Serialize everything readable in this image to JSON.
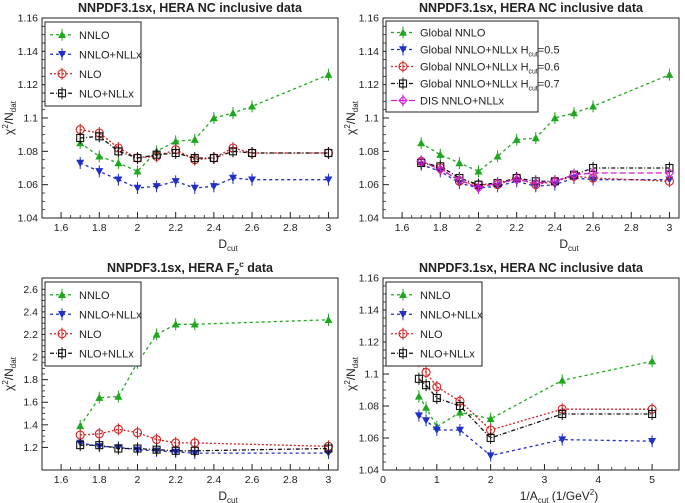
{
  "chart_data": [
    {
      "type": "line",
      "title": "NNPDF3.1sx, HERA NC inclusive data",
      "xlabel": "D_cut",
      "ylabel": "χ²/N_dat",
      "xlim": [
        1.5,
        3.05
      ],
      "ylim": [
        1.04,
        1.16
      ],
      "xticks": [
        1.6,
        1.8,
        2,
        2.2,
        2.4,
        2.6,
        2.8,
        3
      ],
      "xtick_labels": [
        "1.6",
        "1.8",
        "2",
        "2.2",
        "2.4",
        "2.6",
        "2.8",
        "3"
      ],
      "yticks": [
        1.04,
        1.06,
        1.08,
        1.1,
        1.12,
        1.14,
        1.16
      ],
      "ytick_labels": [
        "1.04",
        "1.06",
        "1.08",
        "1.1",
        "1.12",
        "1.14",
        "1.16"
      ],
      "x": [
        1.7,
        1.8,
        1.9,
        2.0,
        2.1,
        2.2,
        2.3,
        2.4,
        2.5,
        2.6,
        3.0
      ],
      "series": [
        {
          "name": "NNLO",
          "values": [
            1.085,
            1.077,
            1.073,
            1.068,
            1.08,
            1.086,
            1.087,
            1.1,
            1.103,
            1.107,
            1.126
          ]
        },
        {
          "name": "NNLO+NLLx",
          "values": [
            1.073,
            1.068,
            1.063,
            1.058,
            1.059,
            1.062,
            1.058,
            1.059,
            1.064,
            1.063,
            1.063
          ]
        },
        {
          "name": "NLO",
          "values": [
            1.093,
            1.091,
            1.082,
            1.076,
            1.077,
            1.081,
            1.075,
            1.076,
            1.082,
            1.079,
            1.079
          ]
        },
        {
          "name": "NLO+NLLx",
          "values": [
            1.088,
            1.089,
            1.08,
            1.076,
            1.078,
            1.079,
            1.076,
            1.076,
            1.08,
            1.079,
            1.079
          ]
        }
      ]
    },
    {
      "type": "line",
      "title": "NNPDF3.1sx, HERA NC inclusive data",
      "xlabel": "D_cut",
      "ylabel": "χ²/N_dat",
      "xlim": [
        1.5,
        3.05
      ],
      "ylim": [
        1.04,
        1.16
      ],
      "xticks": [
        1.6,
        1.8,
        2,
        2.2,
        2.4,
        2.6,
        2.8,
        3
      ],
      "xtick_labels": [
        "1.6",
        "1.8",
        "2",
        "2.2",
        "2.4",
        "2.6",
        "2.8",
        "3"
      ],
      "yticks": [
        1.04,
        1.06,
        1.08,
        1.1,
        1.12,
        1.14,
        1.16
      ],
      "ytick_labels": [
        "1.04",
        "1.06",
        "1.08",
        "1.1",
        "1.12",
        "1.14",
        "1.16"
      ],
      "x": [
        1.7,
        1.8,
        1.9,
        2.0,
        2.1,
        2.2,
        2.3,
        2.4,
        2.5,
        2.6,
        3.0
      ],
      "series": [
        {
          "name": "Global NNLO",
          "values": [
            1.085,
            1.078,
            1.073,
            1.068,
            1.077,
            1.087,
            1.088,
            1.1,
            1.103,
            1.107,
            1.126
          ]
        },
        {
          "name": "Global NNLO+NLLx H_cut=0.5",
          "values": [
            1.072,
            1.068,
            1.061,
            1.058,
            1.059,
            1.062,
            1.059,
            1.06,
            1.064,
            1.063,
            1.063
          ]
        },
        {
          "name": "Global NNLO+NLLx H_cut=0.6",
          "values": [
            1.074,
            1.07,
            1.062,
            1.06,
            1.06,
            1.064,
            1.06,
            1.062,
            1.065,
            1.064,
            1.062
          ]
        },
        {
          "name": "Global NNLO+NLLx H_cut=0.7",
          "values": [
            1.073,
            1.071,
            1.064,
            1.06,
            1.061,
            1.064,
            1.062,
            1.062,
            1.066,
            1.07,
            1.07
          ]
        },
        {
          "name": "DIS NNLO+NLLx",
          "values": [
            1.074,
            1.069,
            1.063,
            1.058,
            1.061,
            1.063,
            1.061,
            1.062,
            1.066,
            1.067,
            1.067
          ]
        }
      ]
    },
    {
      "type": "line",
      "title": "NNPDF3.1sx, HERA F₂ᶜ data",
      "title_main": "NNPDF3.1sx, HERA F",
      "title_sub": "2",
      "title_sup": "c",
      "title_end": " data",
      "xlabel": "D_cut",
      "ylabel": "χ²/N_dat",
      "xlim": [
        1.5,
        3.05
      ],
      "ylim": [
        1.0,
        2.7
      ],
      "xticks": [
        1.6,
        1.8,
        2,
        2.2,
        2.4,
        2.6,
        2.8,
        3
      ],
      "xtick_labels": [
        "1.6",
        "1.8",
        "2",
        "2.2",
        "2.4",
        "2.6",
        "2.8",
        "3"
      ],
      "yticks": [
        1.2,
        1.4,
        1.6,
        1.8,
        2,
        2.2,
        2.4,
        2.6
      ],
      "ytick_labels": [
        "1.2",
        "1.4",
        "1.6",
        "1.8",
        "2",
        "2.2",
        "2.4",
        "2.6"
      ],
      "x": [
        1.7,
        1.8,
        1.9,
        2.0,
        2.1,
        2.2,
        2.3,
        3.0
      ],
      "series": [
        {
          "name": "NNLO",
          "values": [
            1.39,
            1.64,
            1.65,
            1.95,
            2.2,
            2.29,
            2.29,
            2.33
          ]
        },
        {
          "name": "NNLO+NLLx",
          "values": [
            1.24,
            1.21,
            1.2,
            1.18,
            1.17,
            1.16,
            1.15,
            1.15
          ]
        },
        {
          "name": "NLO",
          "values": [
            1.31,
            1.32,
            1.36,
            1.33,
            1.27,
            1.24,
            1.24,
            1.21
          ]
        },
        {
          "name": "NLO+NLLx",
          "values": [
            1.22,
            1.22,
            1.19,
            1.19,
            1.18,
            1.17,
            1.17,
            1.19
          ]
        }
      ]
    },
    {
      "type": "line",
      "title": "NNPDF3.1sx, HERA NC inclusive data",
      "xlabel": "1/A_cut (1/GeV²)",
      "ylabel": "χ²/N_dat",
      "xlim": [
        0,
        5.5
      ],
      "ylim": [
        1.04,
        1.16
      ],
      "xticks": [
        0,
        1,
        2,
        3,
        4,
        5
      ],
      "xtick_labels": [
        "0",
        "1",
        "2",
        "3",
        "4",
        "5"
      ],
      "yticks": [
        1.04,
        1.06,
        1.08,
        1.1,
        1.12,
        1.14,
        1.16
      ],
      "ytick_labels": [
        "1.04",
        "1.06",
        "1.08",
        "1.1",
        "1.12",
        "1.14",
        "1.16"
      ],
      "x": [
        0.667,
        0.8,
        1.0,
        1.43,
        2.0,
        3.33,
        5.0
      ],
      "series": [
        {
          "name": "NNLO",
          "values": [
            1.086,
            1.079,
            1.067,
            1.076,
            1.072,
            1.096,
            1.108
          ]
        },
        {
          "name": "NNLO+NLLx",
          "values": [
            1.074,
            1.071,
            1.065,
            1.065,
            1.049,
            1.059,
            1.058
          ]
        },
        {
          "name": "NLO",
          "values": [
            1.108,
            1.101,
            1.092,
            1.083,
            1.065,
            1.078,
            1.078
          ]
        },
        {
          "name": "NLO+NLLx",
          "values": [
            1.097,
            1.093,
            1.085,
            1.08,
            1.06,
            1.075,
            1.075
          ]
        }
      ]
    }
  ],
  "styles": {
    "NNLO": {
      "color": "#1fa81f",
      "marker": "triangle-up",
      "dash": "3,3"
    },
    "Global NNLO": {
      "color": "#1fa81f",
      "marker": "triangle-up",
      "dash": "3,3"
    },
    "NNLO+NLLx": {
      "color": "#1f2fc8",
      "marker": "triangle-down",
      "dash": "3,3"
    },
    "Global NNLO+NLLx H_cut=0.5": {
      "color": "#1f2fc8",
      "marker": "triangle-down",
      "dash": "3,3"
    },
    "NLO": {
      "color": "#d42020",
      "marker": "circle-open",
      "dash": "2,2"
    },
    "Global NNLO+NLLx H_cut=0.6": {
      "color": "#d42020",
      "marker": "circle-open",
      "dash": "2,2"
    },
    "NLO+NLLx": {
      "color": "#111111",
      "marker": "square-open",
      "dash": "4,2,1,2"
    },
    "Global NNLO+NLLx H_cut=0.7": {
      "color": "#111111",
      "marker": "square-open",
      "dash": "4,2,1,2"
    },
    "DIS NNLO+NLLx": {
      "color": "#d020d0",
      "marker": "diamond-open",
      "dash": "6,3"
    }
  },
  "legends": [
    [
      {
        "text": "NNLO"
      },
      {
        "text": "NNLO+NLLx"
      },
      {
        "text": "NLO"
      },
      {
        "text": "NLO+NLLx"
      }
    ],
    [
      {
        "text": "Global NNLO"
      },
      {
        "text": "Global NNLO+NLLx H",
        "sub": "cut",
        "end": "=0.5"
      },
      {
        "text": "Global NNLO+NLLx H",
        "sub": "cut",
        "end": "=0.6"
      },
      {
        "text": "Global NNLO+NLLx H",
        "sub": "cut",
        "end": "=0.7"
      },
      {
        "text": "DIS NNLO+NLLx"
      }
    ],
    [
      {
        "text": "NNLO"
      },
      {
        "text": "NNLO+NLLx"
      },
      {
        "text": "NLO"
      },
      {
        "text": "NLO+NLLx"
      }
    ],
    [
      {
        "text": "NNLO"
      },
      {
        "text": "NNLO+NLLx"
      },
      {
        "text": "NLO"
      },
      {
        "text": "NLO+NLLx"
      }
    ]
  ],
  "axis_text": {
    "ylab_main": "χ",
    "ylab_sup": "2",
    "ylab_mid": "/N",
    "ylab_sub": "dat",
    "dcut_main": "D",
    "dcut_sub": "cut",
    "acut_main": "1/A",
    "acut_sub": "cut",
    "acut_end1": " (1/GeV",
    "acut_sup": "2",
    "acut_end2": ")"
  }
}
